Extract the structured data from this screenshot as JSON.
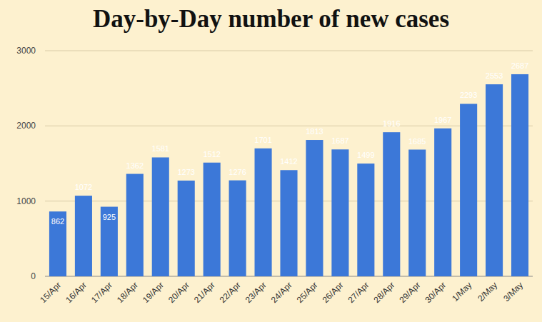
{
  "chart_data": {
    "type": "bar",
    "title": "Day-by-Day number of new cases",
    "categories": [
      "15/Apr",
      "16/Apr",
      "17/Apr",
      "18/Apr",
      "19/Apr",
      "20/Apr",
      "21/Apr",
      "22/Apr",
      "23/Apr",
      "24/Apr",
      "25/Apr",
      "26/Apr",
      "27/Apr",
      "28/Apr",
      "29/Apr",
      "30/Apr",
      "1/May",
      "2/May",
      "3/May"
    ],
    "values": [
      862,
      1072,
      925,
      1362,
      1581,
      1273,
      1512,
      1276,
      1701,
      1412,
      1813,
      1687,
      1499,
      1916,
      1685,
      1967,
      2293,
      2553,
      2687
    ],
    "color": "#3c78d8",
    "ylim": [
      0,
      3000
    ],
    "yticks": [
      0,
      1000,
      2000,
      3000
    ],
    "grid": true,
    "data_labels": true
  }
}
